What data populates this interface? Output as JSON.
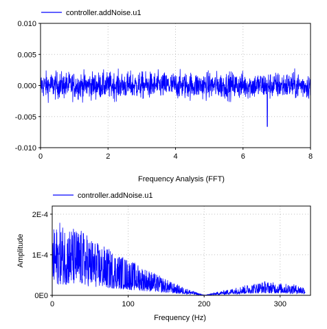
{
  "chart_data": [
    {
      "type": "line",
      "title": "",
      "xlabel": "",
      "ylabel": "",
      "xlim": [
        0,
        8
      ],
      "ylim": [
        -0.01,
        0.01
      ],
      "xticks": [
        0,
        2,
        4,
        6,
        8
      ],
      "xtick_labels": [
        "0",
        "2",
        "4",
        "6",
        "8"
      ],
      "yticks": [
        0.01,
        0.005,
        0.0,
        -0.005,
        -0.01
      ],
      "ytick_labels": [
        "0.010",
        "0.005",
        "0.000",
        "-0.005",
        "-0.010"
      ],
      "grid": true,
      "legend_position": "top-left",
      "series": [
        {
          "name": "controller.addNoise.u1",
          "color": "#0000ff",
          "signal": "band-limited noise centered on 0, amplitude mostly within ±0.005, occasional spikes to ~-0.0065 near x=6.7"
        }
      ]
    },
    {
      "type": "line",
      "title": "Frequency Analysis (FFT)",
      "xlabel": "Frequency (Hz)",
      "ylabel": "Amplitude",
      "xlim": [
        0,
        340
      ],
      "ylim": [
        0,
        0.00022
      ],
      "xticks": [
        0,
        100,
        200,
        300
      ],
      "xtick_labels": [
        "0",
        "100",
        "200",
        "300"
      ],
      "yticks": [
        0.0002,
        0.0001,
        0
      ],
      "ytick_labels": [
        "2E-4",
        "1E-4",
        "0E0"
      ],
      "grid": true,
      "legend_position": "top-left",
      "series": [
        {
          "name": "controller.addNoise.u1",
          "color": "#0000ff",
          "envelope_x": [
            0,
            10,
            25,
            40,
            60,
            80,
            100,
            120,
            140,
            160,
            180,
            195,
            200,
            210,
            230,
            260,
            280,
            300,
            320,
            333
          ],
          "envelope_y": [
            0.00016,
            0.00018,
            0.00017,
            0.00016,
            0.00013,
            0.00011,
            9e-05,
            7e-05,
            5e-05,
            3e-05,
            1.5e-05,
            4e-06,
            5e-07,
            5e-06,
            1.4e-05,
            2.8e-05,
            3.5e-05,
            3e-05,
            2.7e-05,
            2.2e-05
          ]
        }
      ]
    }
  ]
}
